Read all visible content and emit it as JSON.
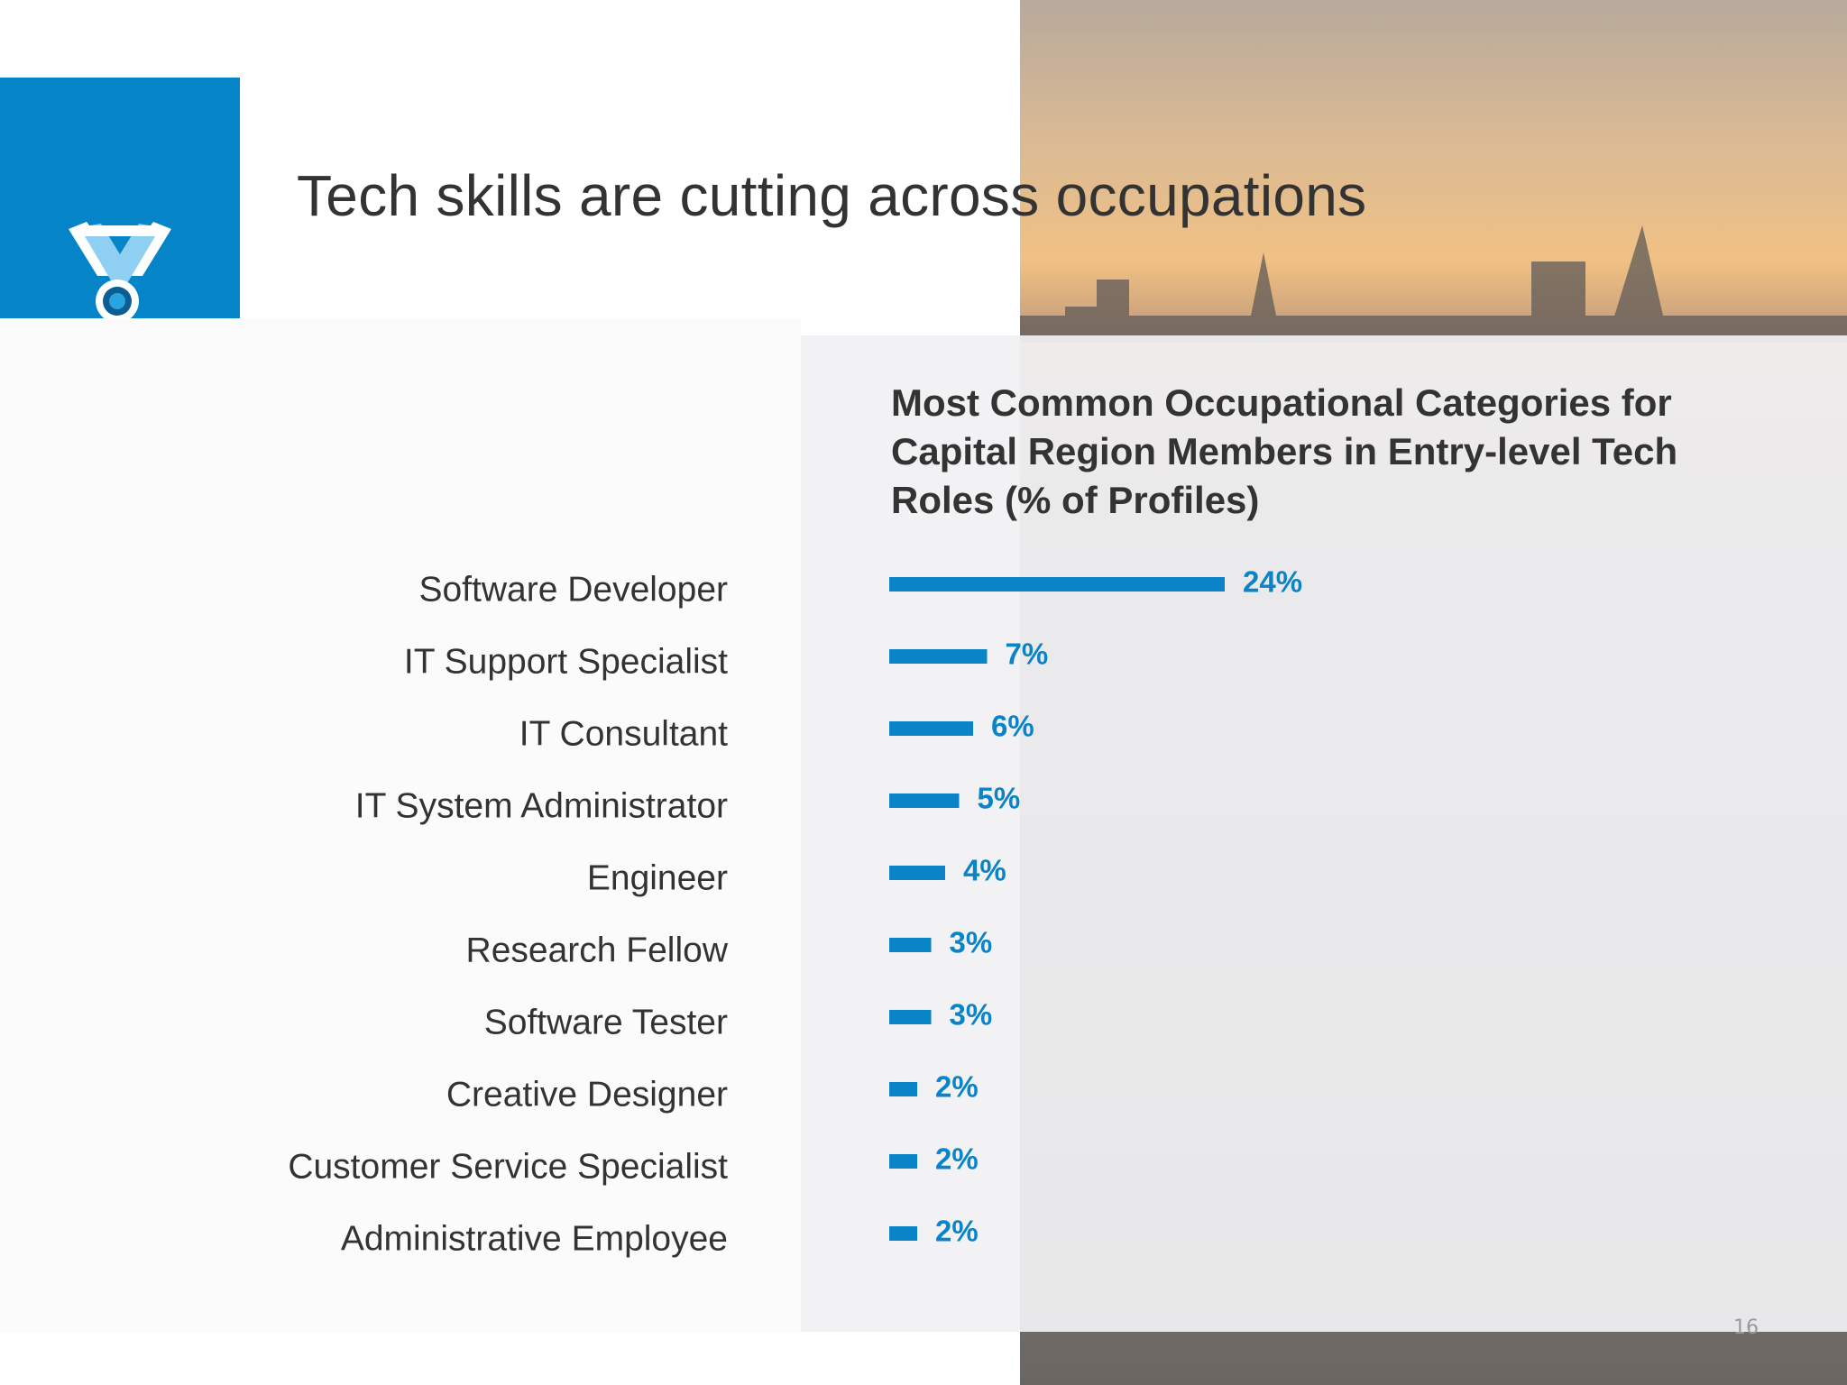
{
  "slide_title": "Tech skills are cutting across occupations",
  "page_number": "16",
  "chart_data": {
    "type": "bar",
    "orientation": "horizontal",
    "title": "Most Common Occupational Categories for Capital Region Members in Entry-level Tech Roles (% of Profiles)",
    "categories": [
      "Software Developer",
      "IT Support Specialist",
      "IT Consultant",
      "IT System Administrator",
      "Engineer",
      "Research Fellow",
      "Software Tester",
      "Creative Designer",
      "Customer Service Specialist",
      "Administrative Employee"
    ],
    "values": [
      24,
      7,
      6,
      5,
      4,
      3,
      3,
      2,
      2,
      2
    ],
    "value_labels": [
      "24%",
      "7%",
      "6%",
      "5%",
      "4%",
      "3%",
      "3%",
      "2%",
      "2%",
      "2%"
    ],
    "color": "#0a84c6"
  }
}
